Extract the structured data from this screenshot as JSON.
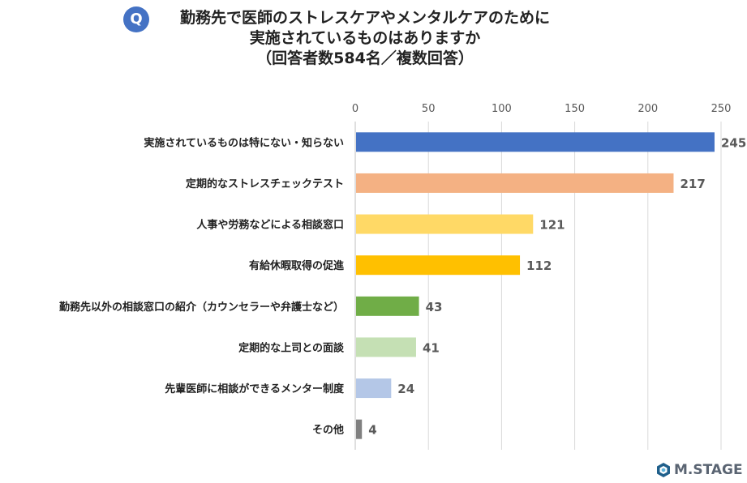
{
  "header": {
    "badge": "Q",
    "title_line1": "勤務先で医師のストレスケアやメンタルケアのために",
    "title_line2": "実施されているものはありますか",
    "title_line3": "（回答者数584名／複数回答）"
  },
  "chart_data": {
    "type": "bar",
    "orientation": "horizontal",
    "categories": [
      "実施されているものは特にない・知らない",
      "定期的なストレスチェックテスト",
      "人事や労務などによる相談窓口",
      "有給休暇取得の促進",
      "勤務先以外の相談窓口の紹介（カウンセラーや弁護士など）",
      "定期的な上司との面談",
      "先輩医師に相談ができるメンター制度",
      "その他"
    ],
    "values": [
      245,
      217,
      121,
      112,
      43,
      41,
      24,
      4
    ],
    "colors": [
      "#4472c4",
      "#f4b183",
      "#ffd966",
      "#ffc000",
      "#70ad47",
      "#c5e0b4",
      "#b4c7e7",
      "#808080"
    ],
    "xlim": [
      0,
      250
    ],
    "ticks": [
      "0",
      "50",
      "100",
      "150",
      "200",
      "250"
    ],
    "grid": true,
    "xlabel": "",
    "ylabel": ""
  },
  "logo": {
    "text": "M.STAGE",
    "icon": "m-stage-logo-icon"
  }
}
